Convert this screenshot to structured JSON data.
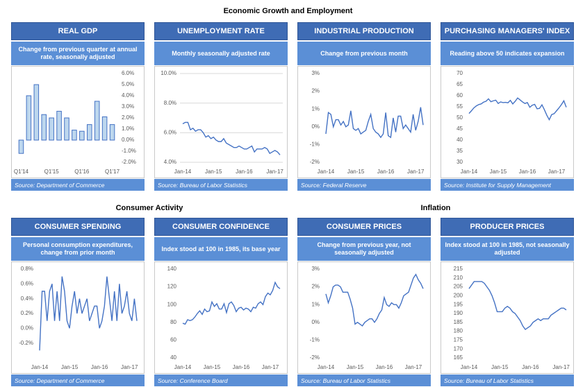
{
  "page_title": "Economic Growth and Employment",
  "section_titles": [
    "Consumer Activity",
    "Inflation"
  ],
  "chart_data": [
    {
      "type": "bar",
      "title": "REAL GDP",
      "subtitle": "Change from previous quarter at annual rate, seasonally adjusted",
      "source": "Source: Department of Commerce",
      "categories": [
        "Q1'14",
        null,
        null,
        null,
        "Q1'15",
        null,
        null,
        null,
        "Q1'16",
        null,
        null,
        null,
        "Q1'17"
      ],
      "values": [
        -1.2,
        4.0,
        5.0,
        2.3,
        2.0,
        2.6,
        2.0,
        0.9,
        0.8,
        1.4,
        3.5,
        2.1,
        1.4
      ],
      "color": "#bdd7ee",
      "edge_color": "#4472c4",
      "y_axis_side": "right",
      "grid": false,
      "ylim": [
        -2,
        6
      ],
      "yticks": [
        {
          "value": -2,
          "label": "-2.0%"
        },
        {
          "value": -1,
          "label": "-1.0%"
        },
        {
          "value": 0,
          "label": "0.0%"
        },
        {
          "value": 1,
          "label": "1.0%"
        },
        {
          "value": 2,
          "label": "2.0%"
        },
        {
          "value": 3,
          "label": "3.0%"
        },
        {
          "value": 4,
          "label": "4.0%"
        },
        {
          "value": 5,
          "label": "5.0%"
        },
        {
          "value": 6,
          "label": "6.0%"
        }
      ]
    },
    {
      "type": "line",
      "title": "UNEMPLOYMENT RATE",
      "subtitle": "Monthly seasonally adjusted rate",
      "source": "Source: Bureau of Labor Statistics",
      "categories": [
        "Jan-14",
        null,
        null,
        null,
        null,
        null,
        null,
        null,
        null,
        null,
        null,
        null,
        "Jan-15",
        null,
        null,
        null,
        null,
        null,
        null,
        null,
        null,
        null,
        null,
        null,
        "Jan-16",
        null,
        null,
        null,
        null,
        null,
        null,
        null,
        null,
        null,
        null,
        null,
        "Jan-17",
        null,
        null
      ],
      "values": [
        6.6,
        6.7,
        6.7,
        6.2,
        6.3,
        6.1,
        6.2,
        6.2,
        6.0,
        5.7,
        5.8,
        5.6,
        5.7,
        5.5,
        5.4,
        5.4,
        5.6,
        5.3,
        5.2,
        5.1,
        5.0,
        5.0,
        5.1,
        5.0,
        4.9,
        4.9,
        5.0,
        5.1,
        4.7,
        4.9,
        4.9,
        4.9,
        5.0,
        4.9,
        4.6,
        4.7,
        4.8,
        4.7,
        4.5
      ],
      "color": "#4472c4",
      "y_axis_side": "left",
      "grid": true,
      "ylim": [
        4,
        10
      ],
      "yticks": [
        {
          "value": 4,
          "label": "4.0%"
        },
        {
          "value": 6,
          "label": "6.0%"
        },
        {
          "value": 8,
          "label": "8.0%"
        },
        {
          "value": 10,
          "label": "10.0%"
        }
      ]
    },
    {
      "type": "line",
      "title": "INDUSTRIAL PRODUCTION",
      "subtitle": "Change from previous month",
      "source": "Source: Federal Reserve",
      "categories": [
        "Jan-14",
        null,
        null,
        null,
        null,
        null,
        null,
        null,
        null,
        null,
        null,
        null,
        "Jan-15",
        null,
        null,
        null,
        null,
        null,
        null,
        null,
        null,
        null,
        null,
        null,
        "Jan-16",
        null,
        null,
        null,
        null,
        null,
        null,
        null,
        null,
        null,
        null,
        null,
        "Jan-17",
        null,
        null,
        null
      ],
      "values": [
        -0.4,
        0.8,
        0.7,
        0.0,
        0.4,
        0.4,
        0.1,
        0.3,
        0.0,
        0.1,
        0.9,
        -0.1,
        -0.2,
        -0.1,
        -0.4,
        -0.3,
        -0.2,
        0.3,
        0.7,
        -0.1,
        -0.3,
        -0.4,
        -0.6,
        -0.4,
        0.8,
        -0.5,
        -0.6,
        0.5,
        -0.3,
        0.6,
        0.6,
        -0.1,
        0.1,
        -0.1,
        -0.3,
        0.7,
        -0.2,
        0.3,
        1.1,
        0.1
      ],
      "color": "#4472c4",
      "y_axis_side": "left",
      "grid": false,
      "ylim": [
        -2,
        3
      ],
      "yticks": [
        {
          "value": -2,
          "label": "-2%"
        },
        {
          "value": -1,
          "label": "-1%"
        },
        {
          "value": 0,
          "label": "0%"
        },
        {
          "value": 1,
          "label": "1%"
        },
        {
          "value": 2,
          "label": "2%"
        },
        {
          "value": 3,
          "label": "3%"
        }
      ]
    },
    {
      "type": "line",
      "title": "PURCHASING MANAGERS' INDEX",
      "subtitle": "Reading above 50 indicates expansion",
      "source": "Source: Institute for Supply Management",
      "categories": [
        "Jan-14",
        null,
        null,
        null,
        null,
        null,
        null,
        null,
        null,
        null,
        null,
        null,
        "Jan-15",
        null,
        null,
        null,
        null,
        null,
        null,
        null,
        null,
        null,
        null,
        null,
        "Jan-16",
        null,
        null,
        null,
        null,
        null,
        null,
        null,
        null,
        null,
        null,
        null,
        "Jan-17",
        null,
        null,
        null,
        null
      ],
      "values": [
        52.0,
        53.2,
        54.5,
        55.4,
        56.0,
        56.3,
        57.1,
        57.5,
        58.6,
        57.3,
        57.7,
        58.0,
        56.5,
        57.2,
        56.9,
        57.0,
        56.8,
        57.9,
        56.3,
        57.5,
        59.0,
        58.1,
        57.2,
        56.5,
        56.9,
        54.8,
        55.7,
        56.1,
        54.1,
        54.3,
        55.9,
        53.7,
        51.2,
        49.2,
        51.5,
        51.9,
        53.2,
        54.5,
        56.0,
        57.7,
        54.8
      ],
      "color": "#4472c4",
      "y_axis_side": "left",
      "grid": false,
      "ylim": [
        30,
        70
      ],
      "yticks": [
        30,
        35,
        40,
        45,
        50,
        55,
        60,
        65,
        70
      ]
    },
    {
      "type": "line",
      "title": "CONSUMER SPENDING",
      "subtitle": "Personal consumption expenditures, change from prior month",
      "source": "Source: Department of Commerce",
      "categories": [
        "Jan-14",
        null,
        null,
        null,
        null,
        null,
        null,
        null,
        null,
        null,
        null,
        null,
        "Jan-15",
        null,
        null,
        null,
        null,
        null,
        null,
        null,
        null,
        null,
        null,
        null,
        "Jan-16",
        null,
        null,
        null,
        null,
        null,
        null,
        null,
        null,
        null,
        null,
        null,
        "Jan-17",
        null,
        null,
        null
      ],
      "values": [
        -0.3,
        0.5,
        0.5,
        0.1,
        0.5,
        0.6,
        0.1,
        0.5,
        0.1,
        0.7,
        0.5,
        0.1,
        0.0,
        0.3,
        0.5,
        0.2,
        0.4,
        0.2,
        0.3,
        0.4,
        0.1,
        0.2,
        0.3,
        0.3,
        0.0,
        0.1,
        0.3,
        0.7,
        0.4,
        0.1,
        0.5,
        0.1,
        0.6,
        0.2,
        0.3,
        0.5,
        0.2,
        0.1,
        0.4,
        0.1
      ],
      "color": "#4472c4",
      "y_axis_side": "left",
      "grid": false,
      "ylim": [
        -0.4,
        0.8
      ],
      "yticks": [
        {
          "value": -0.2,
          "label": "-0.2%"
        },
        {
          "value": 0,
          "label": "0.0%"
        },
        {
          "value": 0.2,
          "label": "0.2%"
        },
        {
          "value": 0.4,
          "label": "0.4%"
        },
        {
          "value": 0.6,
          "label": "0.6%"
        },
        {
          "value": 0.8,
          "label": "0.8%"
        }
      ]
    },
    {
      "type": "line",
      "title": "CONSUMER CONFIDENCE",
      "subtitle": "Index stood at 100 in 1985, its base year",
      "source": "Source: Conference Board",
      "categories": [
        "Jan-14",
        null,
        null,
        null,
        null,
        null,
        null,
        null,
        null,
        null,
        null,
        null,
        "Jan-15",
        null,
        null,
        null,
        null,
        null,
        null,
        null,
        null,
        null,
        null,
        null,
        "Jan-16",
        null,
        null,
        null,
        null,
        null,
        null,
        null,
        null,
        null,
        null,
        null,
        "Jan-17",
        null,
        null,
        null,
        null
      ],
      "values": [
        79,
        78,
        83,
        82,
        83,
        86,
        90,
        93,
        89,
        95,
        92,
        93,
        103,
        98,
        101,
        95,
        95,
        101,
        91,
        101,
        103,
        99,
        92,
        96,
        97,
        94,
        96,
        95,
        92,
        97,
        96,
        101,
        103,
        100,
        109,
        113,
        111,
        116,
        125,
        120,
        118
      ],
      "color": "#4472c4",
      "y_axis_side": "left",
      "grid": false,
      "ylim": [
        40,
        140
      ],
      "yticks": [
        40,
        60,
        80,
        100,
        120,
        140
      ]
    },
    {
      "type": "line",
      "title": "CONSUMER PRICES",
      "subtitle": "Change from previous year, not seasonally adjusted",
      "source": "Source: Bureau of Labor Statistics",
      "categories": [
        "Jan-14",
        null,
        null,
        null,
        null,
        null,
        null,
        null,
        null,
        null,
        null,
        null,
        "Jan-15",
        null,
        null,
        null,
        null,
        null,
        null,
        null,
        null,
        null,
        null,
        null,
        "Jan-16",
        null,
        null,
        null,
        null,
        null,
        null,
        null,
        null,
        null,
        null,
        null,
        "Jan-17",
        null,
        null,
        null,
        null
      ],
      "values": [
        1.6,
        1.1,
        1.5,
        2.0,
        2.1,
        2.1,
        2.0,
        1.7,
        1.7,
        1.7,
        1.3,
        0.8,
        -0.1,
        0.0,
        -0.1,
        -0.2,
        0.0,
        0.1,
        0.2,
        0.2,
        0.0,
        0.2,
        0.5,
        0.7,
        1.4,
        1.0,
        0.9,
        1.1,
        1.0,
        1.0,
        0.8,
        1.1,
        1.5,
        1.6,
        1.7,
        2.1,
        2.5,
        2.7,
        2.4,
        2.2,
        1.9
      ],
      "color": "#4472c4",
      "y_axis_side": "left",
      "grid": false,
      "ylim": [
        -2,
        3
      ],
      "yticks": [
        {
          "value": -2,
          "label": "-2%"
        },
        {
          "value": -1,
          "label": "-1%"
        },
        {
          "value": 0,
          "label": "0%"
        },
        {
          "value": 1,
          "label": "1%"
        },
        {
          "value": 2,
          "label": "2%"
        },
        {
          "value": 3,
          "label": "3%"
        }
      ]
    },
    {
      "type": "line",
      "title": "PRODUCER PRICES",
      "subtitle": "Index stood at 100 in 1985, not seasonally adjusted",
      "source": "Source: Bureau of Labor Statistics",
      "categories": [
        "Jan-14",
        null,
        null,
        null,
        null,
        null,
        null,
        null,
        null,
        null,
        null,
        null,
        "Jan-15",
        null,
        null,
        null,
        null,
        null,
        null,
        null,
        null,
        null,
        null,
        null,
        "Jan-16",
        null,
        null,
        null,
        null,
        null,
        null,
        null,
        null,
        null,
        null,
        null,
        "Jan-17",
        null,
        null
      ],
      "values": [
        204,
        206,
        208,
        208,
        208,
        208,
        207,
        205,
        203,
        200,
        196,
        191,
        191,
        191,
        193,
        194,
        193,
        191,
        190,
        188,
        186,
        183,
        181,
        182,
        183,
        185,
        186,
        187,
        186,
        187,
        187,
        187,
        189,
        190,
        191,
        192,
        193,
        193,
        192
      ],
      "color": "#4472c4",
      "y_axis_side": "left",
      "grid": false,
      "ylim": [
        165,
        215
      ],
      "yticks": [
        165,
        170,
        175,
        180,
        185,
        190,
        195,
        200,
        205,
        210,
        215
      ]
    }
  ]
}
